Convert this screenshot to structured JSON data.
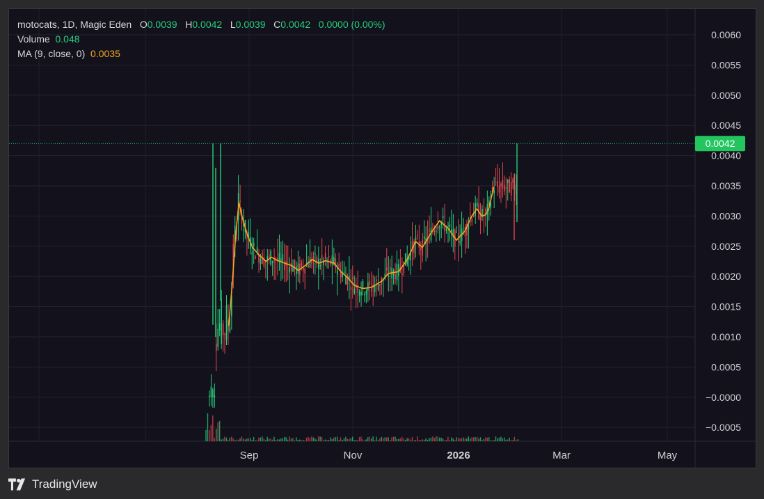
{
  "legend": {
    "symbol": "motocats, 1D, Magic Eden",
    "o_label": "O",
    "o_value": "0.0039",
    "h_label": "H",
    "h_value": "0.0042",
    "l_label": "L",
    "l_value": "0.0039",
    "c_label": "C",
    "c_value": "0.0042",
    "change": "0.0000 (0.00%)",
    "volume_label": "Volume",
    "volume_value": "0.048",
    "ma_label": "MA (9, close, 0)",
    "ma_value": "0.0035"
  },
  "price_tag": "0.0042",
  "brand": "TradingView",
  "colors": {
    "up": "#26d07c",
    "down": "#e5484d",
    "ma": "#f5a623",
    "bg": "#13111c",
    "tag": "#22c55e"
  },
  "chart_data": {
    "type": "line",
    "y_ticks": [
      "0.0060",
      "0.0055",
      "0.0050",
      "0.0045",
      "0.0040",
      "0.0035",
      "0.0030",
      "0.0025",
      "0.0020",
      "0.0015",
      "0.0010",
      "0.0005",
      "−0.0000",
      "−0.0005"
    ],
    "x_ticks": [
      "Sep",
      "Nov",
      "2026",
      "Mar",
      "May"
    ],
    "ylim": [
      -0.0007,
      0.0064
    ],
    "grid": true,
    "last_price": 0.0042,
    "series": [
      {
        "name": "MA (9, close, 0)",
        "points": [
          [
            "2025-08-20",
            0.00118
          ],
          [
            "2025-08-22",
            0.00185
          ],
          [
            "2025-08-24",
            0.00265
          ],
          [
            "2025-08-26",
            0.00322
          ],
          [
            "2025-08-28",
            0.00298
          ],
          [
            "2025-08-31",
            0.00268
          ],
          [
            "2025-09-03",
            0.00248
          ],
          [
            "2025-09-07",
            0.00235
          ],
          [
            "2025-09-11",
            0.00225
          ],
          [
            "2025-09-14",
            0.00232
          ],
          [
            "2025-09-18",
            0.00226
          ],
          [
            "2025-09-22",
            0.00222
          ],
          [
            "2025-09-26",
            0.00218
          ],
          [
            "2025-09-30",
            0.0021
          ],
          [
            "2025-10-04",
            0.00218
          ],
          [
            "2025-10-08",
            0.00228
          ],
          [
            "2025-10-12",
            0.00222
          ],
          [
            "2025-10-16",
            0.00226
          ],
          [
            "2025-10-21",
            0.00222
          ],
          [
            "2025-10-25",
            0.00208
          ],
          [
            "2025-10-29",
            0.00198
          ],
          [
            "2025-11-02",
            0.00185
          ],
          [
            "2025-11-07",
            0.0018
          ],
          [
            "2025-11-12",
            0.00182
          ],
          [
            "2025-11-18",
            0.00192
          ],
          [
            "2025-11-22",
            0.00205
          ],
          [
            "2025-11-28",
            0.00208
          ],
          [
            "2025-12-03",
            0.00228
          ],
          [
            "2025-12-08",
            0.00258
          ],
          [
            "2025-12-12",
            0.00248
          ],
          [
            "2025-12-17",
            0.00272
          ],
          [
            "2025-12-22",
            0.00292
          ],
          [
            "2025-12-27",
            0.0028
          ],
          [
            "2026-01-01",
            0.0026
          ],
          [
            "2026-01-06",
            0.00275
          ],
          [
            "2026-01-10",
            0.003
          ],
          [
            "2026-01-13",
            0.00312
          ],
          [
            "2026-01-16",
            0.003
          ],
          [
            "2026-01-18",
            0.00302
          ],
          [
            "2026-01-20",
            0.00312
          ],
          [
            "2026-01-23",
            0.00348
          ]
        ]
      }
    ],
    "volume_last": 0.048
  }
}
